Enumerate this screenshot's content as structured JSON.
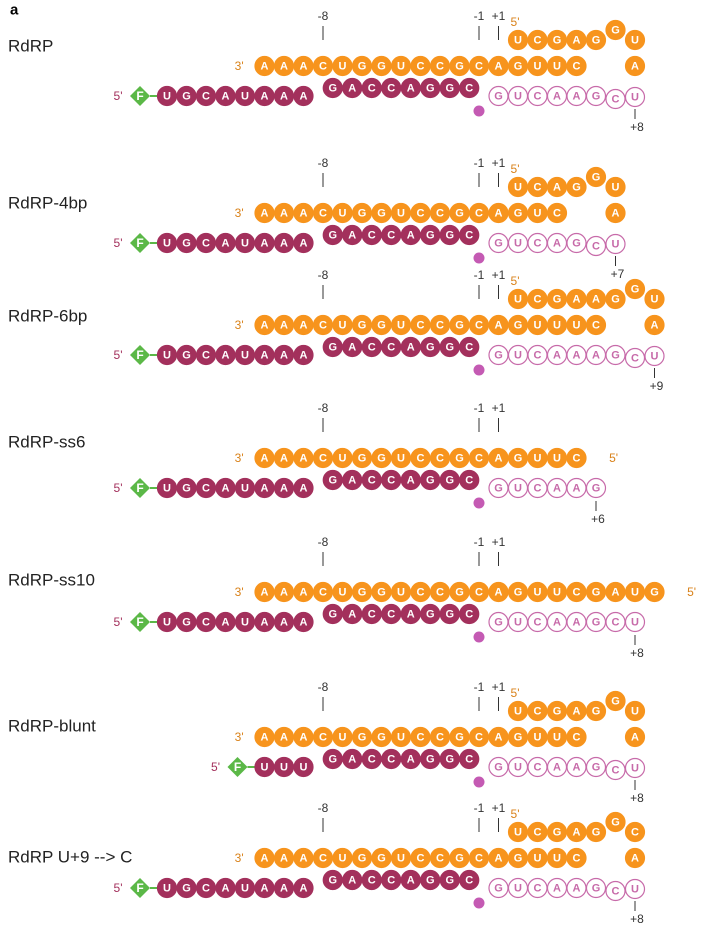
{
  "panel_label": "a",
  "constructs": [
    {
      "name": "RdRP",
      "template": {
        "end_label": "3'",
        "overhang": "AAA",
        "duplex": "CUGGUCCGC",
        "extension": "AGUUC"
      },
      "hairpin": {
        "end_label": "5'",
        "stem": "UCGAG",
        "loop": "GUA"
      },
      "primer": {
        "end_label": "5'",
        "fluor": "F",
        "single": "UGCAUAAA",
        "duplex": "GACCAGGC",
        "product": "GUCAAG",
        "tail": "CU"
      },
      "positions": [
        "-8",
        "-1",
        "+1"
      ],
      "end_position": "+8"
    },
    {
      "name": "RdRP-4bp",
      "template": {
        "end_label": "3'",
        "overhang": "AAA",
        "duplex": "CUGGUCCGC",
        "extension": "AGUC"
      },
      "hairpin": {
        "end_label": "5'",
        "stem": "UCAG",
        "loop": "GUA"
      },
      "primer": {
        "end_label": "5'",
        "fluor": "F",
        "single": "UGCAUAAA",
        "duplex": "GACCAGGC",
        "product": "GUCAG",
        "tail": "CU"
      },
      "positions": [
        "-8",
        "-1",
        "+1"
      ],
      "end_position": "+7"
    },
    {
      "name": "RdRP-6bp",
      "template": {
        "end_label": "3'",
        "overhang": "AAA",
        "duplex": "CUGGUCCGC",
        "extension": "AGUUUC"
      },
      "hairpin": {
        "end_label": "5'",
        "stem": "UCGAAG",
        "loop": "GUA"
      },
      "primer": {
        "end_label": "5'",
        "fluor": "F",
        "single": "UGCAUAAA",
        "duplex": "GACCAGGC",
        "product": "GUCAAAG",
        "tail": "CU"
      },
      "positions": [
        "-8",
        "-1",
        "+1"
      ],
      "end_position": "+9"
    },
    {
      "name": "RdRP-ss6",
      "template": {
        "end_label": "3'",
        "overhang": "AAA",
        "duplex": "CUGGUCCGC",
        "extension": "AGUUC",
        "end5": "5'"
      },
      "primer": {
        "end_label": "5'",
        "fluor": "F",
        "single": "UGCAUAAA",
        "duplex": "GACCAGGC",
        "product": "GUCAAG"
      },
      "positions": [
        "-8",
        "-1",
        "+1"
      ],
      "end_position": "+6"
    },
    {
      "name": "RdRP-ss10",
      "template": {
        "end_label": "3'",
        "overhang": "AAA",
        "duplex": "CUGGUCCGC",
        "extension": "AGUUCGAUG",
        "end5": "5'"
      },
      "primer": {
        "end_label": "5'",
        "fluor": "F",
        "single": "UGCAUAAA",
        "duplex": "GACCAGGC",
        "product": "GUCAAGCU"
      },
      "positions": [
        "-8",
        "-1",
        "+1"
      ],
      "end_position": "+8"
    },
    {
      "name": "RdRP-blunt",
      "template": {
        "end_label": "3'",
        "overhang": "AAA",
        "duplex": "CUGGUCCGC",
        "extension": "AGUUC"
      },
      "hairpin": {
        "end_label": "5'",
        "stem": "UCGAG",
        "loop": "GUA"
      },
      "primer": {
        "end_label": "5'",
        "fluor": "F",
        "single": "UUU",
        "duplex": "GACCAGGC",
        "product": "GUCAAG",
        "tail": "CU"
      },
      "positions": [
        "-8",
        "-1",
        "+1"
      ],
      "end_position": "+8"
    },
    {
      "name": "RdRP U+9 --> C",
      "template": {
        "end_label": "3'",
        "overhang": "AAA",
        "duplex": "CUGGUCCGC",
        "extension": "AGUUC"
      },
      "hairpin": {
        "end_label": "5'",
        "stem": "UCGAG",
        "loop": "GCA"
      },
      "primer": {
        "end_label": "5'",
        "fluor": "F",
        "single": "UGCAUAAA",
        "duplex": "GACCAGGC",
        "product": "GUCAAG",
        "tail": "CU"
      },
      "positions": [
        "-8",
        "-1",
        "+1"
      ],
      "end_position": "+8"
    }
  ]
}
